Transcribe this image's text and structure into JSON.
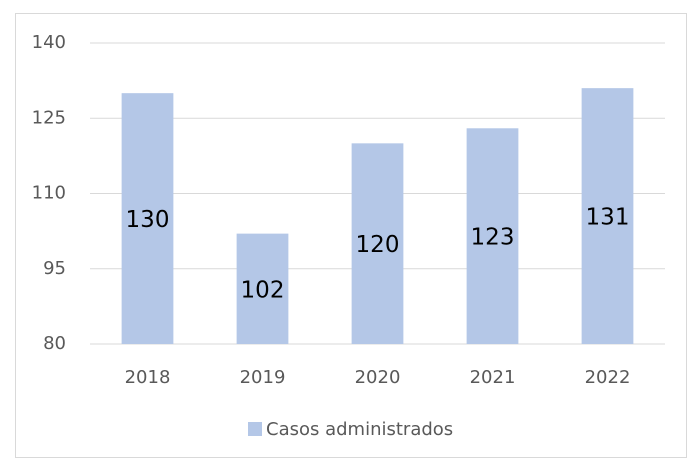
{
  "chart_data": {
    "type": "bar",
    "categories": [
      "2018",
      "2019",
      "2020",
      "2021",
      "2022"
    ],
    "series": [
      {
        "name": "Casos administrados",
        "color": "#b4c7e7",
        "values": [
          130,
          102,
          120,
          123,
          131
        ]
      }
    ],
    "ylim": [
      80,
      140
    ],
    "yticks": [
      80,
      95,
      110,
      125,
      140
    ],
    "grid": true,
    "legend": "bottom"
  }
}
